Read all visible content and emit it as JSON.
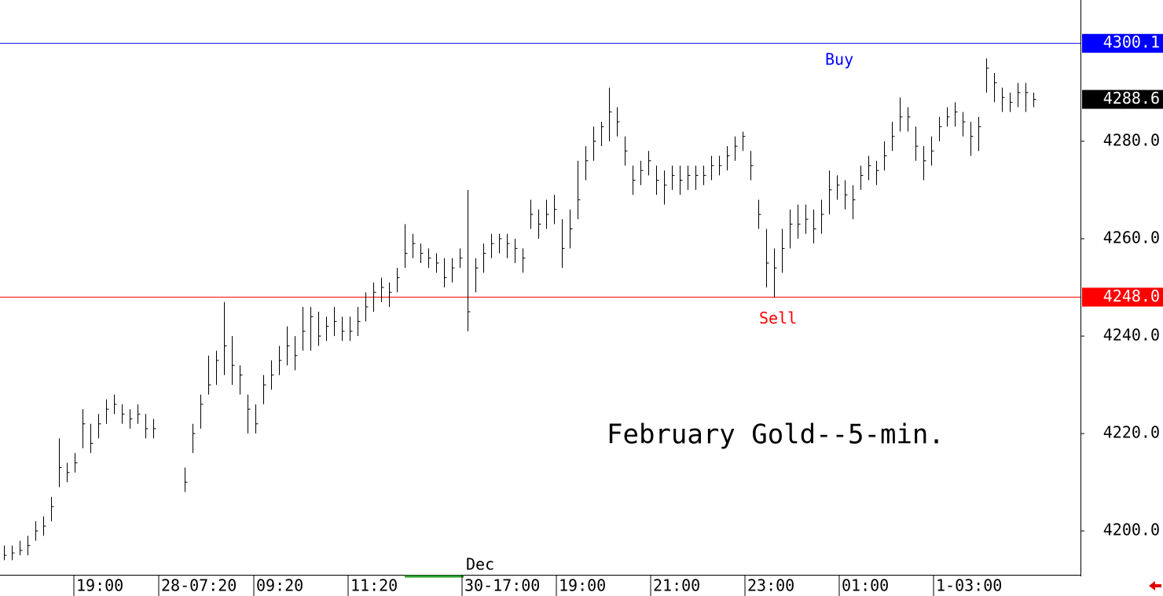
{
  "chart_data": {
    "type": "ohlc",
    "title": "February Gold--5-min.",
    "color": "#000000",
    "xlim": [
      -0.5,
      137
    ],
    "ylim": [
      4191,
      4309
    ],
    "yticks": [
      {
        "value": 4200,
        "label": "4200.0"
      },
      {
        "value": 4220,
        "label": "4220.0"
      },
      {
        "value": 4240,
        "label": "4240.0"
      },
      {
        "value": 4260,
        "label": "4260.0"
      },
      {
        "value": 4280,
        "label": "4280.0"
      }
    ],
    "xticks": [
      {
        "value": 9.2,
        "label": "19:00"
      },
      {
        "value": 20,
        "label": "28-07:20"
      },
      {
        "value": 32.1,
        "label": "09:20"
      },
      {
        "value": 44.1,
        "label": "11:20"
      },
      {
        "value": 58.6,
        "label": "30-17:00"
      },
      {
        "value": 70.6,
        "label": "19:00"
      },
      {
        "value": 82.6,
        "label": "21:00"
      },
      {
        "value": 94.6,
        "label": "23:00"
      },
      {
        "value": 106.6,
        "label": "01:00"
      },
      {
        "value": 118.6,
        "label": "1-03:00"
      }
    ],
    "month_label": {
      "value": 58.6,
      "label": "Dec"
    },
    "reference_lines": [
      {
        "value": 4300.1,
        "label": "4300.1",
        "text": "Buy",
        "color": "#0000ff"
      },
      {
        "value": 4248.0,
        "label": "4248.0",
        "text": "Sell",
        "color": "#ff0000"
      }
    ],
    "last_price": {
      "value": 4288.6,
      "label": "4288.6"
    },
    "high": [
      4197,
      4197,
      4198,
      4199,
      4202,
      4203,
      4207,
      4219,
      4214,
      4216,
      4225,
      4222,
      4224,
      4227,
      4228,
      4226,
      4225,
      4226,
      4224,
      4223,
      null,
      null,
      null,
      4213,
      4222,
      4228,
      4236,
      4237,
      4247,
      4240,
      4234,
      4228,
      4226,
      4232,
      4235,
      4238,
      4242,
      4240,
      4246,
      4246,
      4245,
      4244,
      4246,
      4244,
      4244,
      4246,
      4249,
      4251,
      4252,
      4251,
      4254,
      4263,
      4261,
      4259,
      4258,
      4257,
      4256,
      4256,
      4258,
      4270,
      4256,
      4259,
      4261,
      4261,
      4261,
      4260,
      4258,
      4268,
      4266,
      4268,
      4269,
      4264,
      4266,
      4276,
      4279,
      4283,
      4284,
      4291,
      4287,
      4281,
      4275,
      4276,
      4278,
      4275,
      4274,
      4275,
      4275,
      4275,
      4275,
      4275,
      4277,
      4277,
      4279,
      4281,
      4282,
      4278,
      4268,
      4262,
      4258,
      4262,
      4266,
      4267,
      4267,
      4266,
      4268,
      4274,
      4273,
      4272,
      4271,
      4275,
      4277,
      4276,
      4280,
      4284,
      4289,
      4287,
      4283,
      4279,
      4281,
      4285,
      4287,
      4288,
      4286,
      4284,
      4285,
      4297,
      4294,
      4291,
      4290,
      4292,
      4292,
      4290
    ],
    "low": [
      4194,
      4194,
      4195,
      4195,
      4198,
      4199,
      4202,
      4209,
      4210,
      4212,
      4217,
      4216,
      4219,
      4222,
      4224,
      4222,
      4221,
      4222,
      4219,
      4219,
      null,
      null,
      null,
      4208,
      4216,
      4221,
      4228,
      4230,
      4232,
      4230,
      4228,
      4220,
      4220,
      4226,
      4229,
      4232,
      4234,
      4233,
      4237,
      4237,
      4238,
      4239,
      4240,
      4239,
      4239,
      4240,
      4243,
      4245,
      4247,
      4246,
      4249,
      4254,
      4256,
      4255,
      4254,
      4253,
      4250,
      4251,
      4254,
      4241,
      4249,
      4253,
      4256,
      4257,
      4256,
      4255,
      4253,
      4262,
      4260,
      4262,
      4263,
      4254,
      4258,
      4264,
      4272,
      4276,
      4279,
      4280,
      4281,
      4275,
      4269,
      4271,
      4273,
      4269,
      4267,
      4270,
      4269,
      4270,
      4270,
      4271,
      4272,
      4273,
      4274,
      4276,
      4278,
      4272,
      4262,
      4250,
      4248,
      4253,
      4258,
      4260,
      4261,
      4259,
      4261,
      4265,
      4268,
      4266,
      4264,
      4270,
      4272,
      4271,
      4274,
      4278,
      4282,
      4282,
      4276,
      4272,
      4275,
      4280,
      4283,
      4283,
      4281,
      4277,
      4278,
      4290,
      4288,
      4286,
      4286,
      4287,
      4286,
      4287
    ],
    "close": [
      4195,
      4195.5,
      4196,
      4197,
      4200,
      4201,
      4205,
      4213,
      4212,
      4214,
      4222,
      4218,
      4222,
      4225,
      4226,
      4224,
      4223,
      4224,
      4221,
      4221,
      null,
      null,
      null,
      4210,
      4220,
      4226,
      4230,
      4235,
      4238,
      4234,
      4232,
      4225,
      4222,
      4230,
      4232,
      4235,
      4238,
      4236,
      4241,
      4244,
      4240,
      4242,
      4243,
      4241,
      4241,
      4243,
      4246,
      4249,
      4250,
      4249,
      4252,
      4257,
      4259,
      4257,
      4256,
      4255,
      4252,
      4254,
      4256,
      4245,
      4254,
      4257,
      4259,
      4260,
      4259,
      4258,
      4256,
      4265,
      4263,
      4265,
      4266,
      4258,
      4262,
      4268,
      4276,
      4280,
      4283,
      4286,
      4284,
      4278,
      4272,
      4274,
      4276,
      4272,
      4271,
      4273,
      4272,
      4273,
      4273,
      4273,
      4275,
      4275,
      4277,
      4279,
      4281,
      4275,
      4265,
      4255,
      4254,
      4258,
      4263,
      4263,
      4264,
      4262,
      4265,
      4270,
      4271,
      4269,
      4268,
      4273,
      4275,
      4274,
      4277,
      4281,
      4285,
      4285,
      4279,
      4276,
      4278,
      4283,
      4285,
      4286,
      4284,
      4281,
      4283,
      4295,
      4292,
      4289,
      4288,
      4290,
      4290,
      4288.6
    ]
  }
}
